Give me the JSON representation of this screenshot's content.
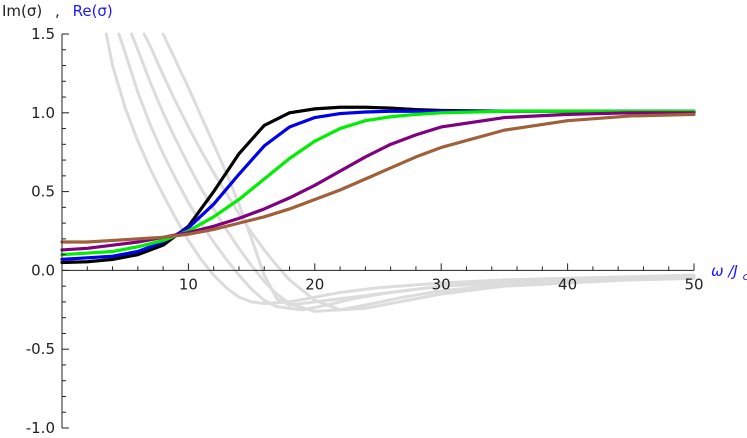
{
  "chart_data": {
    "type": "line",
    "ylabel_parts": {
      "im": "Im(σ)",
      "sep": ",",
      "re": "Re(σ)"
    },
    "xlabel_parts": {
      "omega": "ω",
      "slash": "/J",
      "sub": "c"
    },
    "xlim": [
      0,
      50
    ],
    "ylim": [
      -1.0,
      1.5
    ],
    "x_ticks": [
      "10",
      "20",
      "30",
      "40",
      "50"
    ],
    "y_ticks": [
      "1.5",
      "1.0",
      "0.5",
      "0.0",
      "-0.5",
      "-1.0"
    ],
    "x_tick_values": [
      10,
      20,
      30,
      40,
      50
    ],
    "y_tick_values": [
      1.5,
      1.0,
      0.5,
      0.0,
      -0.5,
      -1.0
    ],
    "x_minor_step": 2,
    "y_minor_step": 0.1,
    "colors": {
      "axis": "#222222",
      "ylabel_im": "#222222",
      "ylabel_re": "#1a1aff",
      "xlabel": "#1a1aff",
      "imag_curves": "#dcdcdc"
    },
    "series_real": [
      {
        "color": "#000000",
        "x": [
          0,
          2,
          4,
          6,
          8,
          10,
          12,
          14,
          16,
          18,
          20,
          22,
          24,
          26,
          28,
          30,
          35,
          40,
          45,
          50
        ],
        "values": [
          0.05,
          0.055,
          0.07,
          0.1,
          0.16,
          0.28,
          0.5,
          0.74,
          0.92,
          1.0,
          1.025,
          1.035,
          1.035,
          1.03,
          1.02,
          1.015,
          1.01,
          1.01,
          1.01,
          1.01
        ]
      },
      {
        "color": "#0000ee",
        "x": [
          0,
          2,
          4,
          6,
          8,
          10,
          12,
          14,
          16,
          18,
          20,
          22,
          24,
          26,
          28,
          30,
          35,
          40,
          45,
          50
        ],
        "values": [
          0.07,
          0.08,
          0.09,
          0.12,
          0.18,
          0.27,
          0.42,
          0.61,
          0.79,
          0.91,
          0.97,
          0.995,
          1.005,
          1.01,
          1.01,
          1.01,
          1.01,
          1.01,
          1.01,
          1.01
        ]
      },
      {
        "color": "#00ee00",
        "x": [
          0,
          2,
          4,
          6,
          8,
          10,
          12,
          14,
          16,
          18,
          20,
          22,
          24,
          26,
          28,
          30,
          35,
          40,
          45,
          50
        ],
        "values": [
          0.1,
          0.11,
          0.12,
          0.15,
          0.19,
          0.25,
          0.34,
          0.45,
          0.58,
          0.71,
          0.82,
          0.9,
          0.95,
          0.975,
          0.99,
          1.0,
          1.01,
          1.01,
          1.01,
          1.01
        ]
      },
      {
        "color": "#800080",
        "x": [
          0,
          2,
          4,
          6,
          8,
          10,
          12,
          14,
          16,
          18,
          20,
          22,
          24,
          26,
          28,
          30,
          35,
          40,
          45,
          50
        ],
        "values": [
          0.13,
          0.14,
          0.16,
          0.18,
          0.21,
          0.24,
          0.28,
          0.33,
          0.39,
          0.46,
          0.54,
          0.63,
          0.72,
          0.8,
          0.86,
          0.91,
          0.97,
          0.99,
          1.0,
          1.0
        ]
      },
      {
        "color": "#a0603a",
        "x": [
          0,
          2,
          4,
          6,
          8,
          10,
          12,
          14,
          16,
          18,
          20,
          22,
          24,
          26,
          28,
          30,
          35,
          40,
          45,
          50
        ],
        "values": [
          0.18,
          0.18,
          0.19,
          0.2,
          0.21,
          0.23,
          0.26,
          0.3,
          0.34,
          0.39,
          0.45,
          0.51,
          0.58,
          0.65,
          0.72,
          0.78,
          0.89,
          0.95,
          0.98,
          0.99
        ]
      }
    ],
    "series_imag": [
      {
        "x": [
          3.5,
          4,
          5,
          6,
          7,
          8,
          9,
          10,
          11,
          12,
          13,
          14,
          15,
          16,
          18,
          20,
          22,
          25,
          30,
          35,
          40,
          45,
          50
        ],
        "values": [
          1.5,
          1.3,
          1.03,
          0.82,
          0.64,
          0.48,
          0.33,
          0.19,
          0.07,
          -0.03,
          -0.11,
          -0.17,
          -0.2,
          -0.21,
          -0.2,
          -0.17,
          -0.14,
          -0.11,
          -0.08,
          -0.06,
          -0.05,
          -0.04,
          -0.03
        ]
      },
      {
        "x": [
          4.5,
          5,
          6,
          7,
          8,
          9,
          10,
          11,
          12,
          13,
          14,
          15,
          16,
          17,
          19,
          21,
          23,
          26,
          30,
          35,
          40,
          45,
          50
        ],
        "values": [
          1.5,
          1.38,
          1.13,
          0.92,
          0.74,
          0.58,
          0.43,
          0.3,
          0.18,
          0.07,
          -0.03,
          -0.12,
          -0.19,
          -0.23,
          -0.25,
          -0.22,
          -0.18,
          -0.14,
          -0.1,
          -0.07,
          -0.06,
          -0.05,
          -0.04
        ]
      },
      {
        "x": [
          5.5,
          6,
          7,
          8,
          9,
          10,
          11,
          12,
          13,
          14,
          15,
          16,
          17,
          18,
          20,
          22,
          24,
          27,
          30,
          35,
          40,
          45,
          50
        ],
        "values": [
          1.5,
          1.4,
          1.19,
          1.0,
          0.83,
          0.67,
          0.52,
          0.39,
          0.26,
          0.14,
          0.03,
          -0.07,
          -0.15,
          -0.21,
          -0.26,
          -0.25,
          -0.22,
          -0.17,
          -0.13,
          -0.09,
          -0.07,
          -0.06,
          -0.05
        ]
      },
      {
        "x": [
          6.5,
          7,
          8,
          9,
          10,
          11,
          12,
          13,
          14,
          15,
          16,
          17,
          18,
          20,
          22,
          24,
          26,
          28,
          30,
          35,
          40,
          45,
          50
        ],
        "values": [
          1.5,
          1.42,
          1.24,
          1.07,
          0.91,
          0.76,
          0.62,
          0.49,
          0.36,
          0.24,
          0.13,
          0.03,
          -0.06,
          -0.19,
          -0.25,
          -0.24,
          -0.21,
          -0.18,
          -0.15,
          -0.1,
          -0.08,
          -0.06,
          -0.05
        ]
      },
      {
        "x": [
          8,
          9,
          10,
          11,
          12,
          13,
          14,
          15,
          16,
          17,
          18,
          19,
          20,
          22,
          24,
          26,
          28,
          30,
          35,
          40,
          45,
          50
        ],
        "values": [
          1.5,
          1.33,
          1.16,
          0.98,
          0.8,
          0.62,
          0.42,
          0.2,
          -0.03,
          -0.18,
          -0.22,
          -0.21,
          -0.2,
          -0.18,
          -0.16,
          -0.14,
          -0.12,
          -0.1,
          -0.08,
          -0.06,
          -0.05,
          -0.04
        ]
      }
    ]
  }
}
